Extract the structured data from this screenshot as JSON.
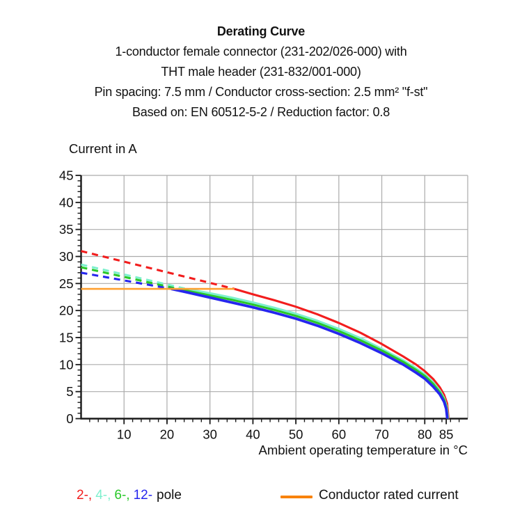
{
  "title": {
    "lines": [
      "Derating Curve",
      "1-conductor female connector (231-202/026-000) with",
      "THT male header (231-832/001-000)",
      "Pin spacing: 7.5 mm / Conductor cross-section: 2.5 mm² \"f-st\"",
      "Based on: EN 60512-5-2 / Reduction factor: 0.8"
    ]
  },
  "chart_data": {
    "type": "line",
    "title": "Derating Curve",
    "ylabel": "Current in A",
    "xlabel": "Ambient operating temperature in °C",
    "xlim": [
      0,
      90
    ],
    "ylim": [
      0,
      45
    ],
    "x_major_ticks": [
      10,
      20,
      30,
      40,
      50,
      60,
      70,
      80,
      85
    ],
    "y_major_ticks": [
      0,
      5,
      10,
      15,
      20,
      25,
      30,
      35,
      40,
      45
    ],
    "x_minor_step": 2,
    "y_minor_step": 1,
    "grid": true,
    "grid_color": "#ababab",
    "axis_color": "#1a1a1a",
    "series": [
      {
        "name": "2-pole",
        "color": "#f21d1d",
        "style_dashed_then_solid": true,
        "dashed": [
          [
            0,
            31
          ],
          [
            35.7,
            24
          ]
        ],
        "solid": [
          [
            35.7,
            24
          ],
          [
            40,
            23.0
          ],
          [
            45,
            21.9
          ],
          [
            50,
            20.7
          ],
          [
            55,
            19.3
          ],
          [
            60,
            17.7
          ],
          [
            65,
            15.9
          ],
          [
            70,
            13.8
          ],
          [
            75,
            11.5
          ],
          [
            78,
            10.0
          ],
          [
            80,
            8.8
          ],
          [
            82,
            7.3
          ],
          [
            83.5,
            5.8
          ],
          [
            84.5,
            4.4
          ],
          [
            85.2,
            2.8
          ],
          [
            85.55,
            0
          ]
        ]
      },
      {
        "name": "4-pole",
        "color": "#7df0cd",
        "style_dashed_then_solid": true,
        "dashed": [
          [
            0,
            28.5
          ],
          [
            24.5,
            24
          ]
        ],
        "solid": [
          [
            24.5,
            24
          ],
          [
            30,
            23.2
          ],
          [
            35,
            22.4
          ],
          [
            40,
            21.5
          ],
          [
            45,
            20.5
          ],
          [
            50,
            19.4
          ],
          [
            55,
            18.1
          ],
          [
            60,
            16.6
          ],
          [
            65,
            14.9
          ],
          [
            70,
            12.9
          ],
          [
            75,
            10.8
          ],
          [
            78,
            9.3
          ],
          [
            80,
            8.2
          ],
          [
            82,
            6.7
          ],
          [
            83.5,
            5.2
          ],
          [
            84.5,
            3.8
          ],
          [
            85.1,
            2.3
          ],
          [
            85.45,
            0
          ]
        ]
      },
      {
        "name": "6-pole",
        "color": "#29c829",
        "style_dashed_then_solid": true,
        "dashed": [
          [
            0,
            28
          ],
          [
            22.5,
            24
          ]
        ],
        "solid": [
          [
            22.5,
            24
          ],
          [
            25,
            23.6
          ],
          [
            30,
            22.8
          ],
          [
            35,
            22.0
          ],
          [
            40,
            21.1
          ],
          [
            45,
            20.1
          ],
          [
            50,
            19.0
          ],
          [
            55,
            17.7
          ],
          [
            60,
            16.2
          ],
          [
            65,
            14.5
          ],
          [
            70,
            12.6
          ],
          [
            75,
            10.5
          ],
          [
            78,
            9.0
          ],
          [
            80,
            7.9
          ],
          [
            82,
            6.4
          ],
          [
            83.5,
            4.9
          ],
          [
            84.5,
            3.5
          ],
          [
            85.05,
            2.1
          ],
          [
            85.35,
            0
          ]
        ]
      },
      {
        "name": "12-pole",
        "color": "#2626ee",
        "style_dashed_then_solid": true,
        "dashed": [
          [
            0,
            27
          ],
          [
            21,
            24
          ]
        ],
        "solid": [
          [
            21,
            24
          ],
          [
            25,
            23.3
          ],
          [
            30,
            22.4
          ],
          [
            35,
            21.5
          ],
          [
            40,
            20.6
          ],
          [
            45,
            19.6
          ],
          [
            50,
            18.5
          ],
          [
            55,
            17.2
          ],
          [
            60,
            15.7
          ],
          [
            65,
            14.0
          ],
          [
            70,
            12.1
          ],
          [
            75,
            10.0
          ],
          [
            78,
            8.5
          ],
          [
            80,
            7.4
          ],
          [
            82,
            5.9
          ],
          [
            83.5,
            4.5
          ],
          [
            84.5,
            3.1
          ],
          [
            85,
            1.8
          ],
          [
            85.25,
            0
          ]
        ]
      }
    ],
    "rated_current": {
      "label": "Conductor rated current",
      "value": 24,
      "x_start": 0,
      "x_end": 35.7,
      "color": "#ffa030"
    }
  },
  "legend": {
    "pole_items": [
      {
        "label": "2-,",
        "color": "#f21d1d"
      },
      {
        "label": "4-,",
        "color": "#7df0cd"
      },
      {
        "label": "6-,",
        "color": "#29c829"
      },
      {
        "label": "12-",
        "color": "#2626ee"
      }
    ],
    "pole_word": "pole",
    "rated_label": "Conductor rated current",
    "rated_color": "#f8820a"
  }
}
